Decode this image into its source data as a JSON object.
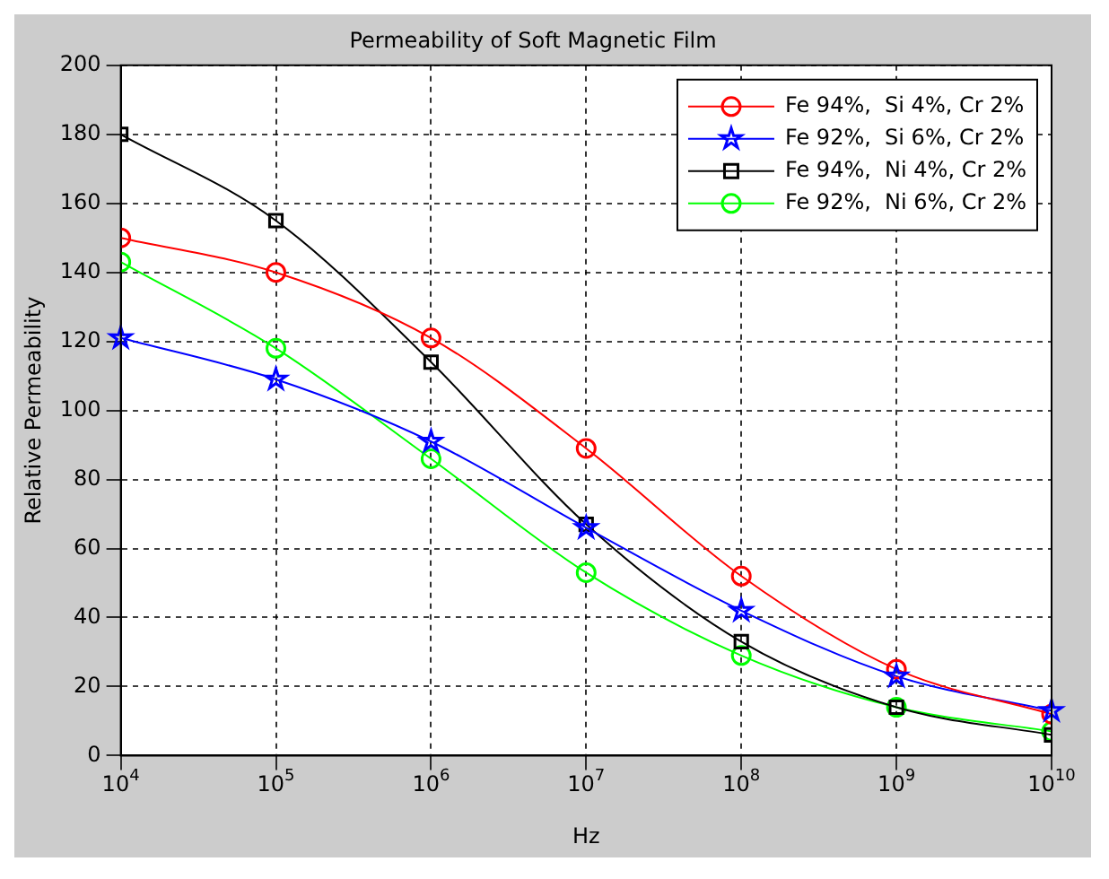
{
  "chart_data": {
    "type": "line",
    "title": "Permeability of Soft Magnetic Film",
    "xlabel": "Hz",
    "ylabel": "Relative Permeability",
    "x": [
      10000,
      100000,
      1000000,
      10000000,
      100000000,
      1000000000,
      10000000000
    ],
    "series": [
      {
        "name": "Fe 94%,  Si 4%, Cr 2%",
        "color": "#ff0000",
        "marker": "circle",
        "values": [
          150,
          140,
          121,
          89,
          52,
          25,
          12
        ]
      },
      {
        "name": "Fe 92%,  Si 6%, Cr 2%",
        "color": "#0000ff",
        "marker": "star",
        "values": [
          121,
          109,
          91,
          66,
          42,
          23,
          13
        ]
      },
      {
        "name": "Fe 94%,  Ni 4%, Cr 2%",
        "color": "#000000",
        "marker": "square",
        "values": [
          180,
          155,
          114,
          67,
          33,
          14,
          6
        ]
      },
      {
        "name": "Fe 92%,  Ni 6%, Cr 2%",
        "color": "#00ff00",
        "marker": "circle",
        "values": [
          143,
          118,
          86,
          53,
          29,
          14,
          7
        ]
      }
    ],
    "log": "x",
    "xlim": [
      10000,
      10000000000
    ],
    "ylim": [
      0,
      200
    ],
    "xticks": [
      {
        "value": 10000,
        "label": "10$^{4}$"
      },
      {
        "value": 100000,
        "label": "10$^{5}$"
      },
      {
        "value": 1000000,
        "label": "10$^{6}$"
      },
      {
        "value": 10000000,
        "label": "10$^{7}$"
      },
      {
        "value": 100000000,
        "label": "10$^{8}$"
      },
      {
        "value": 1000000000,
        "label": "10$^{9}$"
      },
      {
        "value": 10000000000,
        "label": "10$^{10}$"
      }
    ],
    "yticks": [
      0,
      20,
      40,
      60,
      80,
      100,
      120,
      140,
      160,
      180,
      200
    ],
    "grid": true,
    "legend": "top right",
    "line_style": "solid"
  }
}
